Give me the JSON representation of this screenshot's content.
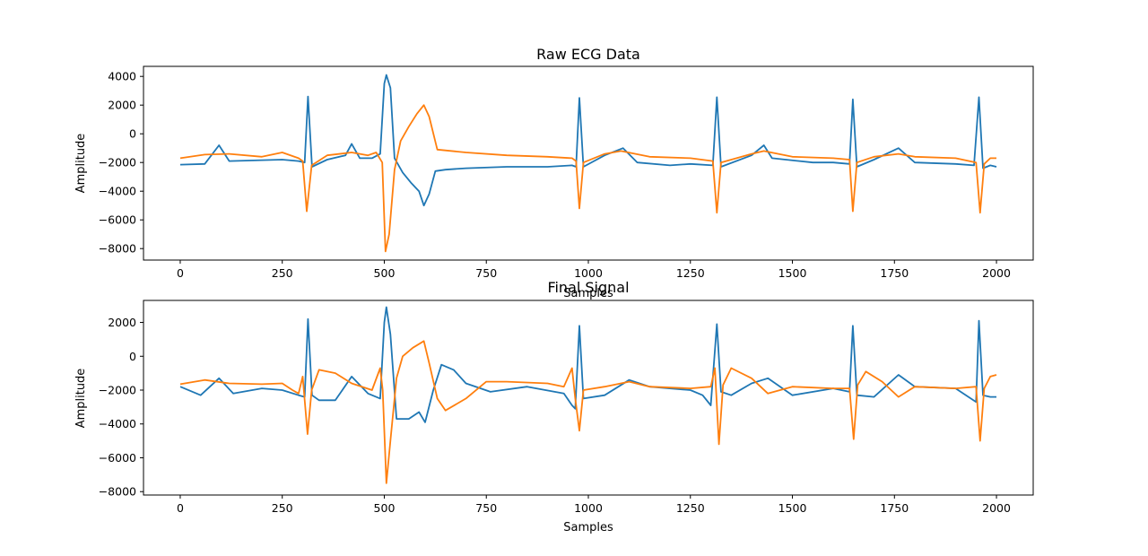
{
  "chart_data": [
    {
      "type": "line",
      "title": "Raw ECG Data",
      "xlabel": "Samples",
      "ylabel": "Amplitude",
      "xlim": [
        -90,
        2090
      ],
      "ylim": [
        -8800,
        4700
      ],
      "xticks": [
        0,
        250,
        500,
        750,
        1000,
        1250,
        1500,
        1750,
        2000
      ],
      "yticks": [
        -8000,
        -6000,
        -4000,
        -2000,
        0,
        2000,
        4000
      ],
      "grid": false,
      "series": [
        {
          "color": "#1f77b4",
          "points": [
            [
              0,
              -2150
            ],
            [
              60,
              -2100
            ],
            [
              95,
              -800
            ],
            [
              120,
              -1900
            ],
            [
              250,
              -1800
            ],
            [
              290,
              -1900
            ],
            [
              305,
              -2000
            ],
            [
              313,
              2600
            ],
            [
              323,
              -2300
            ],
            [
              360,
              -1800
            ],
            [
              405,
              -1500
            ],
            [
              420,
              -700
            ],
            [
              440,
              -1700
            ],
            [
              470,
              -1700
            ],
            [
              490,
              -1400
            ],
            [
              500,
              3500
            ],
            [
              505,
              4100
            ],
            [
              515,
              3200
            ],
            [
              525,
              -1700
            ],
            [
              545,
              -2700
            ],
            [
              565,
              -3400
            ],
            [
              585,
              -4000
            ],
            [
              597,
              -5000
            ],
            [
              610,
              -4200
            ],
            [
              625,
              -2600
            ],
            [
              650,
              -2500
            ],
            [
              700,
              -2400
            ],
            [
              800,
              -2300
            ],
            [
              900,
              -2300
            ],
            [
              960,
              -2200
            ],
            [
              970,
              -2300
            ],
            [
              978,
              2500
            ],
            [
              988,
              -2300
            ],
            [
              1040,
              -1500
            ],
            [
              1085,
              -1000
            ],
            [
              1120,
              -2000
            ],
            [
              1200,
              -2200
            ],
            [
              1250,
              -2100
            ],
            [
              1305,
              -2200
            ],
            [
              1315,
              2550
            ],
            [
              1325,
              -2300
            ],
            [
              1400,
              -1500
            ],
            [
              1430,
              -800
            ],
            [
              1450,
              -1700
            ],
            [
              1550,
              -2000
            ],
            [
              1600,
              -2000
            ],
            [
              1640,
              -2100
            ],
            [
              1648,
              2400
            ],
            [
              1658,
              -2300
            ],
            [
              1700,
              -1800
            ],
            [
              1760,
              -1000
            ],
            [
              1800,
              -2000
            ],
            [
              1900,
              -2100
            ],
            [
              1945,
              -2200
            ],
            [
              1957,
              2550
            ],
            [
              1967,
              -2400
            ],
            [
              1985,
              -2200
            ],
            [
              2000,
              -2300
            ]
          ]
        },
        {
          "color": "#ff7f0e",
          "points": [
            [
              0,
              -1700
            ],
            [
              60,
              -1450
            ],
            [
              120,
              -1400
            ],
            [
              200,
              -1600
            ],
            [
              250,
              -1300
            ],
            [
              290,
              -1700
            ],
            [
              300,
              -1900
            ],
            [
              310,
              -5400
            ],
            [
              322,
              -2200
            ],
            [
              360,
              -1500
            ],
            [
              420,
              -1300
            ],
            [
              460,
              -1500
            ],
            [
              480,
              -1300
            ],
            [
              495,
              -2000
            ],
            [
              503,
              -8200
            ],
            [
              512,
              -7000
            ],
            [
              525,
              -2500
            ],
            [
              540,
              -500
            ],
            [
              560,
              500
            ],
            [
              580,
              1400
            ],
            [
              597,
              2000
            ],
            [
              610,
              1200
            ],
            [
              630,
              -1100
            ],
            [
              700,
              -1300
            ],
            [
              800,
              -1500
            ],
            [
              900,
              -1600
            ],
            [
              960,
              -1700
            ],
            [
              970,
              -1900
            ],
            [
              978,
              -5200
            ],
            [
              988,
              -2000
            ],
            [
              1040,
              -1400
            ],
            [
              1080,
              -1200
            ],
            [
              1150,
              -1600
            ],
            [
              1250,
              -1700
            ],
            [
              1305,
              -1900
            ],
            [
              1315,
              -5500
            ],
            [
              1325,
              -2000
            ],
            [
              1400,
              -1400
            ],
            [
              1430,
              -1200
            ],
            [
              1500,
              -1600
            ],
            [
              1600,
              -1700
            ],
            [
              1640,
              -1800
            ],
            [
              1648,
              -5400
            ],
            [
              1658,
              -2000
            ],
            [
              1700,
              -1600
            ],
            [
              1760,
              -1400
            ],
            [
              1800,
              -1600
            ],
            [
              1900,
              -1700
            ],
            [
              1950,
              -2000
            ],
            [
              1960,
              -5500
            ],
            [
              1970,
              -2100
            ],
            [
              1985,
              -1700
            ],
            [
              2000,
              -1700
            ]
          ]
        }
      ]
    },
    {
      "type": "line",
      "title": "Final Signal",
      "xlabel": "Samples",
      "ylabel": "Amplitude",
      "xlim": [
        -90,
        2090
      ],
      "ylim": [
        -8200,
        3300
      ],
      "xticks": [
        0,
        250,
        500,
        750,
        1000,
        1250,
        1500,
        1750,
        2000
      ],
      "yticks": [
        -8000,
        -6000,
        -4000,
        -2000,
        0,
        2000
      ],
      "grid": false,
      "series": [
        {
          "color": "#1f77b4",
          "points": [
            [
              0,
              -1800
            ],
            [
              50,
              -2300
            ],
            [
              95,
              -1300
            ],
            [
              130,
              -2200
            ],
            [
              200,
              -1900
            ],
            [
              250,
              -2000
            ],
            [
              290,
              -2300
            ],
            [
              305,
              -2400
            ],
            [
              313,
              2200
            ],
            [
              323,
              -2300
            ],
            [
              340,
              -2600
            ],
            [
              380,
              -2600
            ],
            [
              420,
              -1200
            ],
            [
              460,
              -2200
            ],
            [
              490,
              -2500
            ],
            [
              500,
              2000
            ],
            [
              505,
              2900
            ],
            [
              515,
              1300
            ],
            [
              530,
              -3700
            ],
            [
              560,
              -3700
            ],
            [
              585,
              -3300
            ],
            [
              600,
              -3900
            ],
            [
              620,
              -2000
            ],
            [
              640,
              -500
            ],
            [
              670,
              -800
            ],
            [
              700,
              -1600
            ],
            [
              760,
              -2100
            ],
            [
              850,
              -1800
            ],
            [
              940,
              -2200
            ],
            [
              960,
              -2900
            ],
            [
              968,
              -3100
            ],
            [
              978,
              1800
            ],
            [
              988,
              -2500
            ],
            [
              1040,
              -2300
            ],
            [
              1100,
              -1400
            ],
            [
              1150,
              -1800
            ],
            [
              1250,
              -2000
            ],
            [
              1280,
              -2300
            ],
            [
              1300,
              -2900
            ],
            [
              1315,
              1900
            ],
            [
              1325,
              -2100
            ],
            [
              1350,
              -2300
            ],
            [
              1400,
              -1600
            ],
            [
              1440,
              -1300
            ],
            [
              1500,
              -2300
            ],
            [
              1600,
              -1900
            ],
            [
              1640,
              -2100
            ],
            [
              1648,
              1800
            ],
            [
              1658,
              -2300
            ],
            [
              1700,
              -2400
            ],
            [
              1760,
              -1100
            ],
            [
              1800,
              -1800
            ],
            [
              1900,
              -1900
            ],
            [
              1950,
              -2700
            ],
            [
              1957,
              2100
            ],
            [
              1967,
              -2300
            ],
            [
              1985,
              -2400
            ],
            [
              2000,
              -2400
            ]
          ]
        },
        {
          "color": "#ff7f0e",
          "points": [
            [
              0,
              -1650
            ],
            [
              60,
              -1400
            ],
            [
              120,
              -1600
            ],
            [
              200,
              -1650
            ],
            [
              250,
              -1600
            ],
            [
              275,
              -2000
            ],
            [
              290,
              -2200
            ],
            [
              300,
              -1200
            ],
            [
              312,
              -4600
            ],
            [
              322,
              -2000
            ],
            [
              340,
              -800
            ],
            [
              380,
              -1000
            ],
            [
              420,
              -1600
            ],
            [
              470,
              -2000
            ],
            [
              490,
              -700
            ],
            [
              496,
              -2000
            ],
            [
              505,
              -7500
            ],
            [
              515,
              -5000
            ],
            [
              530,
              -1300
            ],
            [
              545,
              0
            ],
            [
              570,
              500
            ],
            [
              597,
              900
            ],
            [
              610,
              -400
            ],
            [
              630,
              -2500
            ],
            [
              650,
              -3200
            ],
            [
              700,
              -2500
            ],
            [
              750,
              -1500
            ],
            [
              800,
              -1500
            ],
            [
              900,
              -1600
            ],
            [
              940,
              -1800
            ],
            [
              960,
              -700
            ],
            [
              968,
              -2500
            ],
            [
              978,
              -4400
            ],
            [
              988,
              -2000
            ],
            [
              1040,
              -1800
            ],
            [
              1100,
              -1500
            ],
            [
              1150,
              -1800
            ],
            [
              1250,
              -1900
            ],
            [
              1300,
              -1800
            ],
            [
              1310,
              -700
            ],
            [
              1320,
              -5200
            ],
            [
              1330,
              -1700
            ],
            [
              1350,
              -700
            ],
            [
              1400,
              -1300
            ],
            [
              1440,
              -2200
            ],
            [
              1500,
              -1800
            ],
            [
              1600,
              -1900
            ],
            [
              1640,
              -1900
            ],
            [
              1650,
              -4900
            ],
            [
              1660,
              -1700
            ],
            [
              1680,
              -900
            ],
            [
              1720,
              -1500
            ],
            [
              1760,
              -2400
            ],
            [
              1800,
              -1800
            ],
            [
              1900,
              -1900
            ],
            [
              1950,
              -1800
            ],
            [
              1960,
              -5000
            ],
            [
              1970,
              -1900
            ],
            [
              1985,
              -1200
            ],
            [
              2000,
              -1100
            ]
          ]
        }
      ]
    }
  ]
}
